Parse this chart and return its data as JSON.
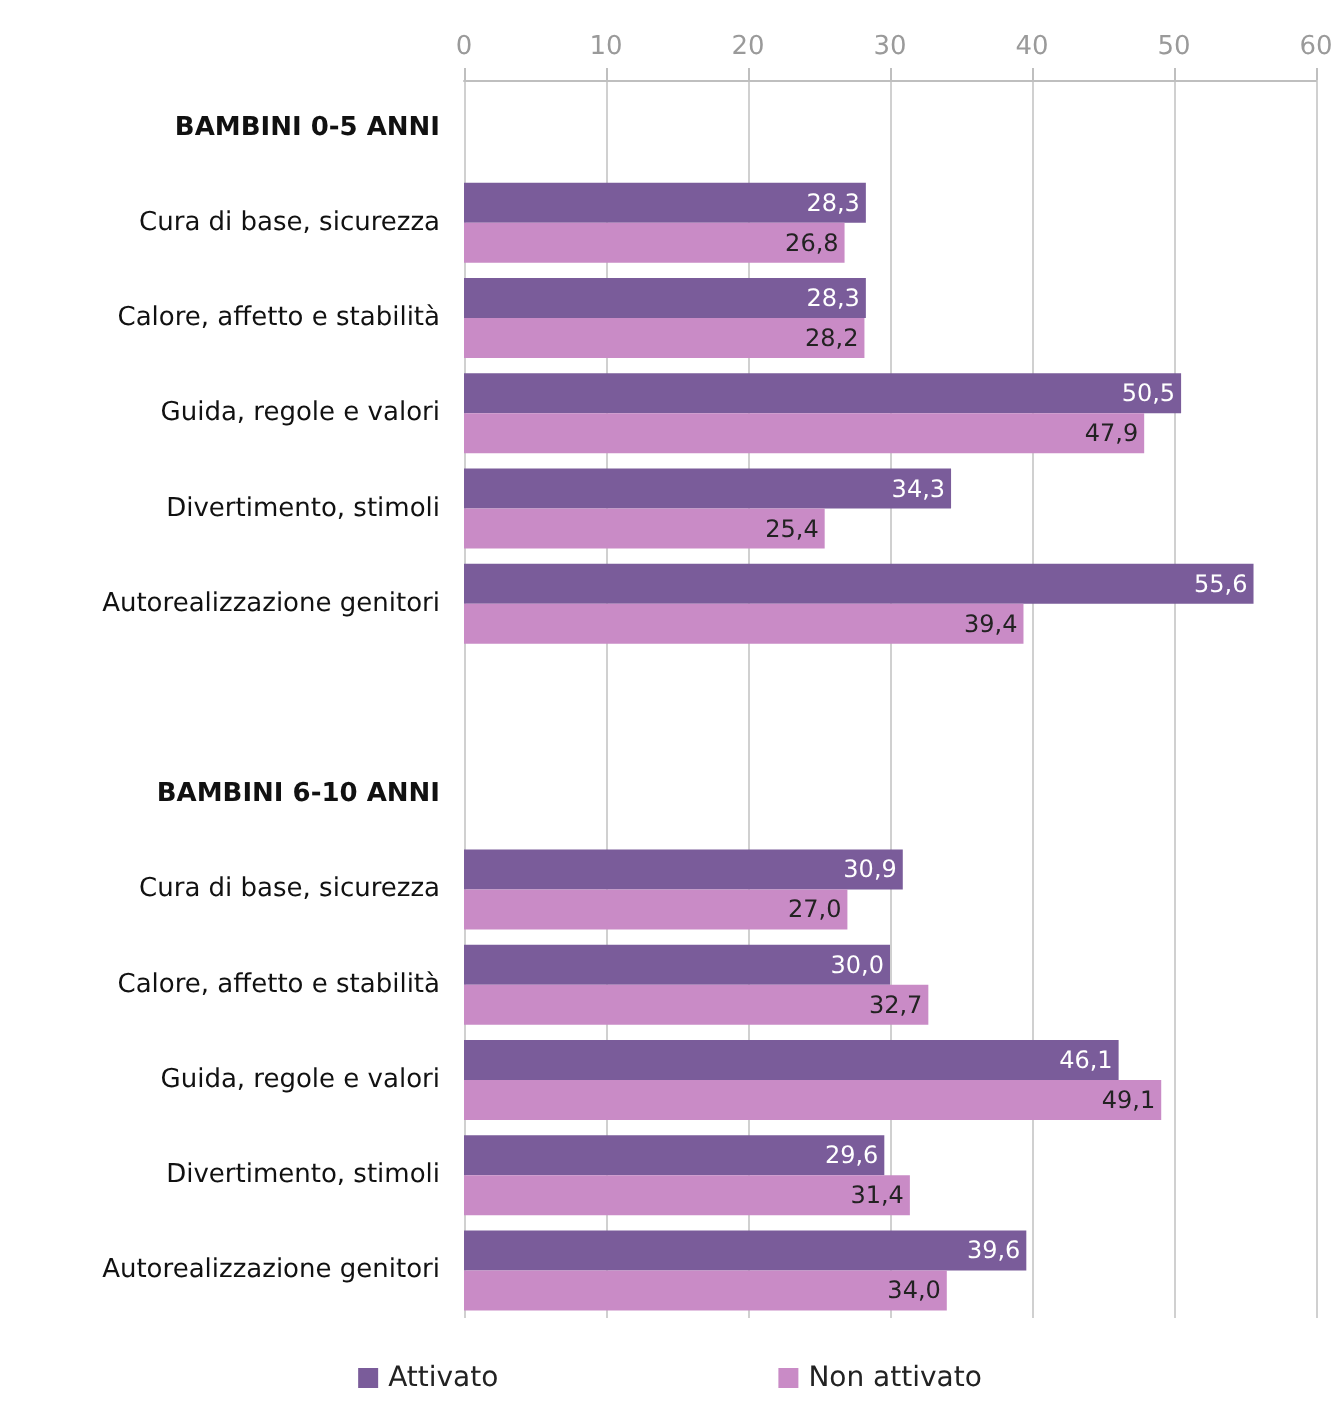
{
  "chart_data": {
    "type": "bar",
    "orientation": "horizontal",
    "categories": [
      "BAMBINI 0-5 ANNI",
      "Cura di base, sicurezza",
      "Calore, affetto e stabilità",
      "Guida, regole e valori",
      "Divertimento, stimoli",
      "Autorealizzazione genitori",
      null,
      "BAMBINI 6-10 ANNI",
      "Cura di base, sicurezza",
      "Calore, affetto e stabilità",
      "Guida, regole e valori",
      "Divertimento, stimoli",
      "Autorealizzazione genitori"
    ],
    "series": [
      {
        "name": "Attivato",
        "color": "#7a5c9a",
        "values": [
          null,
          28.3,
          28.3,
          50.5,
          34.3,
          55.6,
          null,
          null,
          30.9,
          30.0,
          46.1,
          29.6,
          39.6
        ],
        "value_labels": [
          null,
          "28,3",
          "28,3",
          "50,5",
          "34,3",
          "55,6",
          null,
          null,
          "30,9",
          "30,0",
          "46,1",
          "29,6",
          "39,6"
        ]
      },
      {
        "name": "Non attivato",
        "color": "#c98bc6",
        "values": [
          null,
          26.8,
          28.2,
          47.9,
          25.4,
          39.4,
          null,
          null,
          27.0,
          32.7,
          49.1,
          31.4,
          34.0
        ],
        "value_labels": [
          null,
          "26,8",
          "28,2",
          "47,9",
          "25,4",
          "39,4",
          null,
          null,
          "27,0",
          "32,7",
          "49,1",
          "31,4",
          "34,0"
        ]
      }
    ],
    "xlim": [
      0,
      60
    ],
    "xticks": [
      0,
      10,
      20,
      30,
      40,
      50,
      60
    ],
    "grid": "x",
    "legend": "bottom"
  }
}
